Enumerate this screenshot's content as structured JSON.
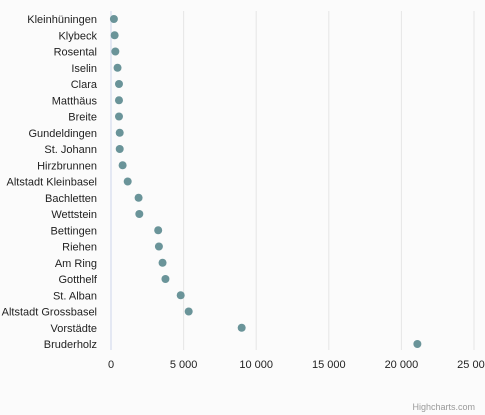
{
  "chart_data": {
    "type": "scatter",
    "orientation": "horizontal-dot",
    "title": "",
    "xlabel": "",
    "ylabel": "",
    "categories": [
      "Kleinhüningen",
      "Klybeck",
      "Rosental",
      "Iselin",
      "Clara",
      "Matthäus",
      "Breite",
      "Gundeldingen",
      "St. Johann",
      "Hirzbrunnen",
      "Altstadt Kleinbasel",
      "Bachletten",
      "Wettstein",
      "Bettingen",
      "Riehen",
      "Am Ring",
      "Gotthelf",
      "St. Alban",
      "Altstadt Grossbasel",
      "Vorstädte",
      "Bruderholz"
    ],
    "values": [
      200,
      250,
      300,
      450,
      550,
      550,
      550,
      600,
      600,
      800,
      1150,
      1900,
      1950,
      3250,
      3300,
      3550,
      3750,
      4800,
      5350,
      9000,
      21100
    ],
    "xlim": [
      0,
      25000
    ],
    "xticks": [
      0,
      5000,
      10000,
      15000,
      20000,
      25000
    ],
    "xtick_labels": [
      "0",
      "5 000",
      "10 000",
      "15 000",
      "20 000",
      "25 000"
    ],
    "grid": true,
    "legend": "none",
    "colors": {
      "marker": "#6a9499",
      "grid": "#e6e6e6",
      "axis": "#ccd6eb"
    }
  },
  "credits": "Highcharts.com"
}
